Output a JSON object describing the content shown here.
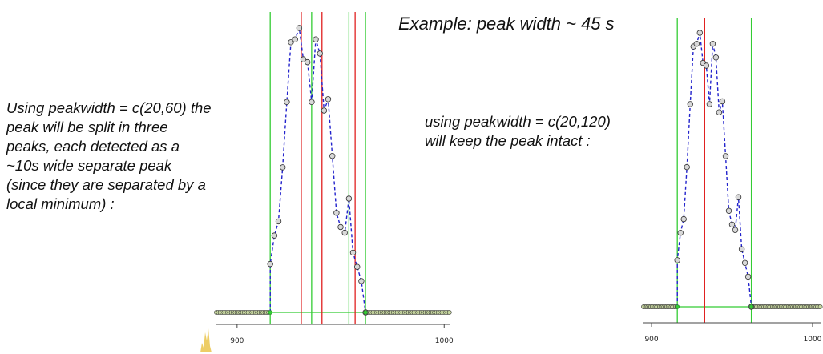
{
  "title": "Example: peak width ~ 45 s",
  "left_note_lines": [
    "Using peakwidth = c(20,60) the",
    "peak will be split in three",
    "peaks, each detected as a",
    "~10s wide separate peak",
    "(since they are separated by a",
    "local minimum) :"
  ],
  "right_note_lines": [
    "using peakwidth = c(20,120)",
    "will keep the peak intact :"
  ],
  "colors": {
    "trace": "#2222cc",
    "peak_center_line": "#e02020",
    "peak_boundary_line": "#33cc33",
    "axis": "#444444",
    "baseline_points": "#7a9a3a"
  },
  "chart_data": [
    {
      "type": "line",
      "name_in_image": "",
      "xlim": [
        890,
        1003
      ],
      "xticks": [
        900,
        1000
      ],
      "x": [
        916,
        918,
        920,
        922,
        924,
        926,
        928,
        930,
        932,
        934,
        936,
        938,
        940,
        942,
        944,
        946,
        948,
        950,
        952,
        954,
        956,
        958,
        960,
        962
      ],
      "y": [
        0.17,
        0.27,
        0.32,
        0.51,
        0.74,
        0.95,
        0.96,
        1.0,
        0.89,
        0.88,
        0.74,
        0.96,
        0.91,
        0.71,
        0.75,
        0.55,
        0.35,
        0.3,
        0.28,
        0.4,
        0.21,
        0.16,
        0.11,
        0.0
      ],
      "peak_centers": [
        931,
        941,
        957
      ],
      "peak_boundaries": [
        916,
        936,
        954,
        962
      ],
      "baseline_range": [
        890,
        1003
      ]
    },
    {
      "type": "line",
      "name_in_image": "",
      "xlim": [
        895,
        1005
      ],
      "xticks": [
        900,
        1000
      ],
      "x": [
        916,
        918,
        920,
        922,
        924,
        926,
        928,
        930,
        932,
        934,
        936,
        938,
        940,
        942,
        944,
        946,
        948,
        950,
        952,
        954,
        956,
        958,
        960,
        962
      ],
      "y": [
        0.17,
        0.27,
        0.32,
        0.51,
        0.74,
        0.95,
        0.96,
        1.0,
        0.89,
        0.88,
        0.74,
        0.96,
        0.91,
        0.71,
        0.75,
        0.55,
        0.35,
        0.3,
        0.28,
        0.4,
        0.21,
        0.16,
        0.11,
        0.0
      ],
      "peak_centers": [
        933
      ],
      "peak_boundaries": [
        916,
        962
      ],
      "baseline_range": [
        895,
        1005
      ]
    }
  ]
}
